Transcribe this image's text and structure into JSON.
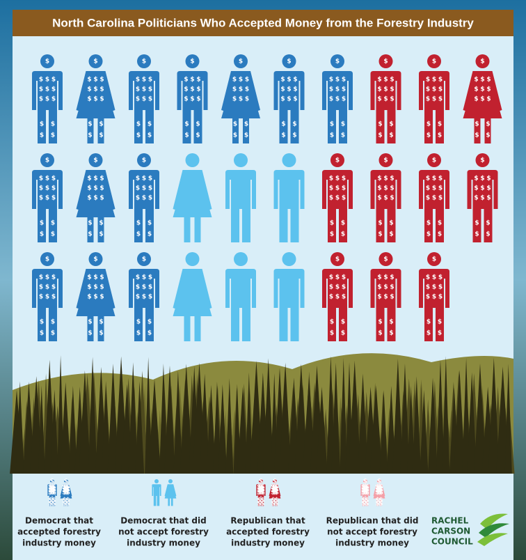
{
  "title": "North Carolina Politicians Who Accepted Money from the Forestry Industry",
  "icon_symbol": "$",
  "legend": [
    {
      "lines": [
        "Democrat that",
        "accepted forestry",
        "industry money"
      ],
      "color": "#2b7bbf"
    },
    {
      "lines": [
        "Democrat that did",
        "not accept forestry",
        "industry money"
      ],
      "color": "#5cc2ee"
    },
    {
      "lines": [
        "Republican that",
        "accepted forestry",
        "industry money"
      ],
      "color": "#c1212f"
    },
    {
      "lines": [
        "Republican that did",
        "not accept forestry",
        "industry money"
      ],
      "color": "#f4a0a8"
    }
  ],
  "logo": [
    "RACHEL",
    "CARSON",
    "COUNCIL"
  ]
}
